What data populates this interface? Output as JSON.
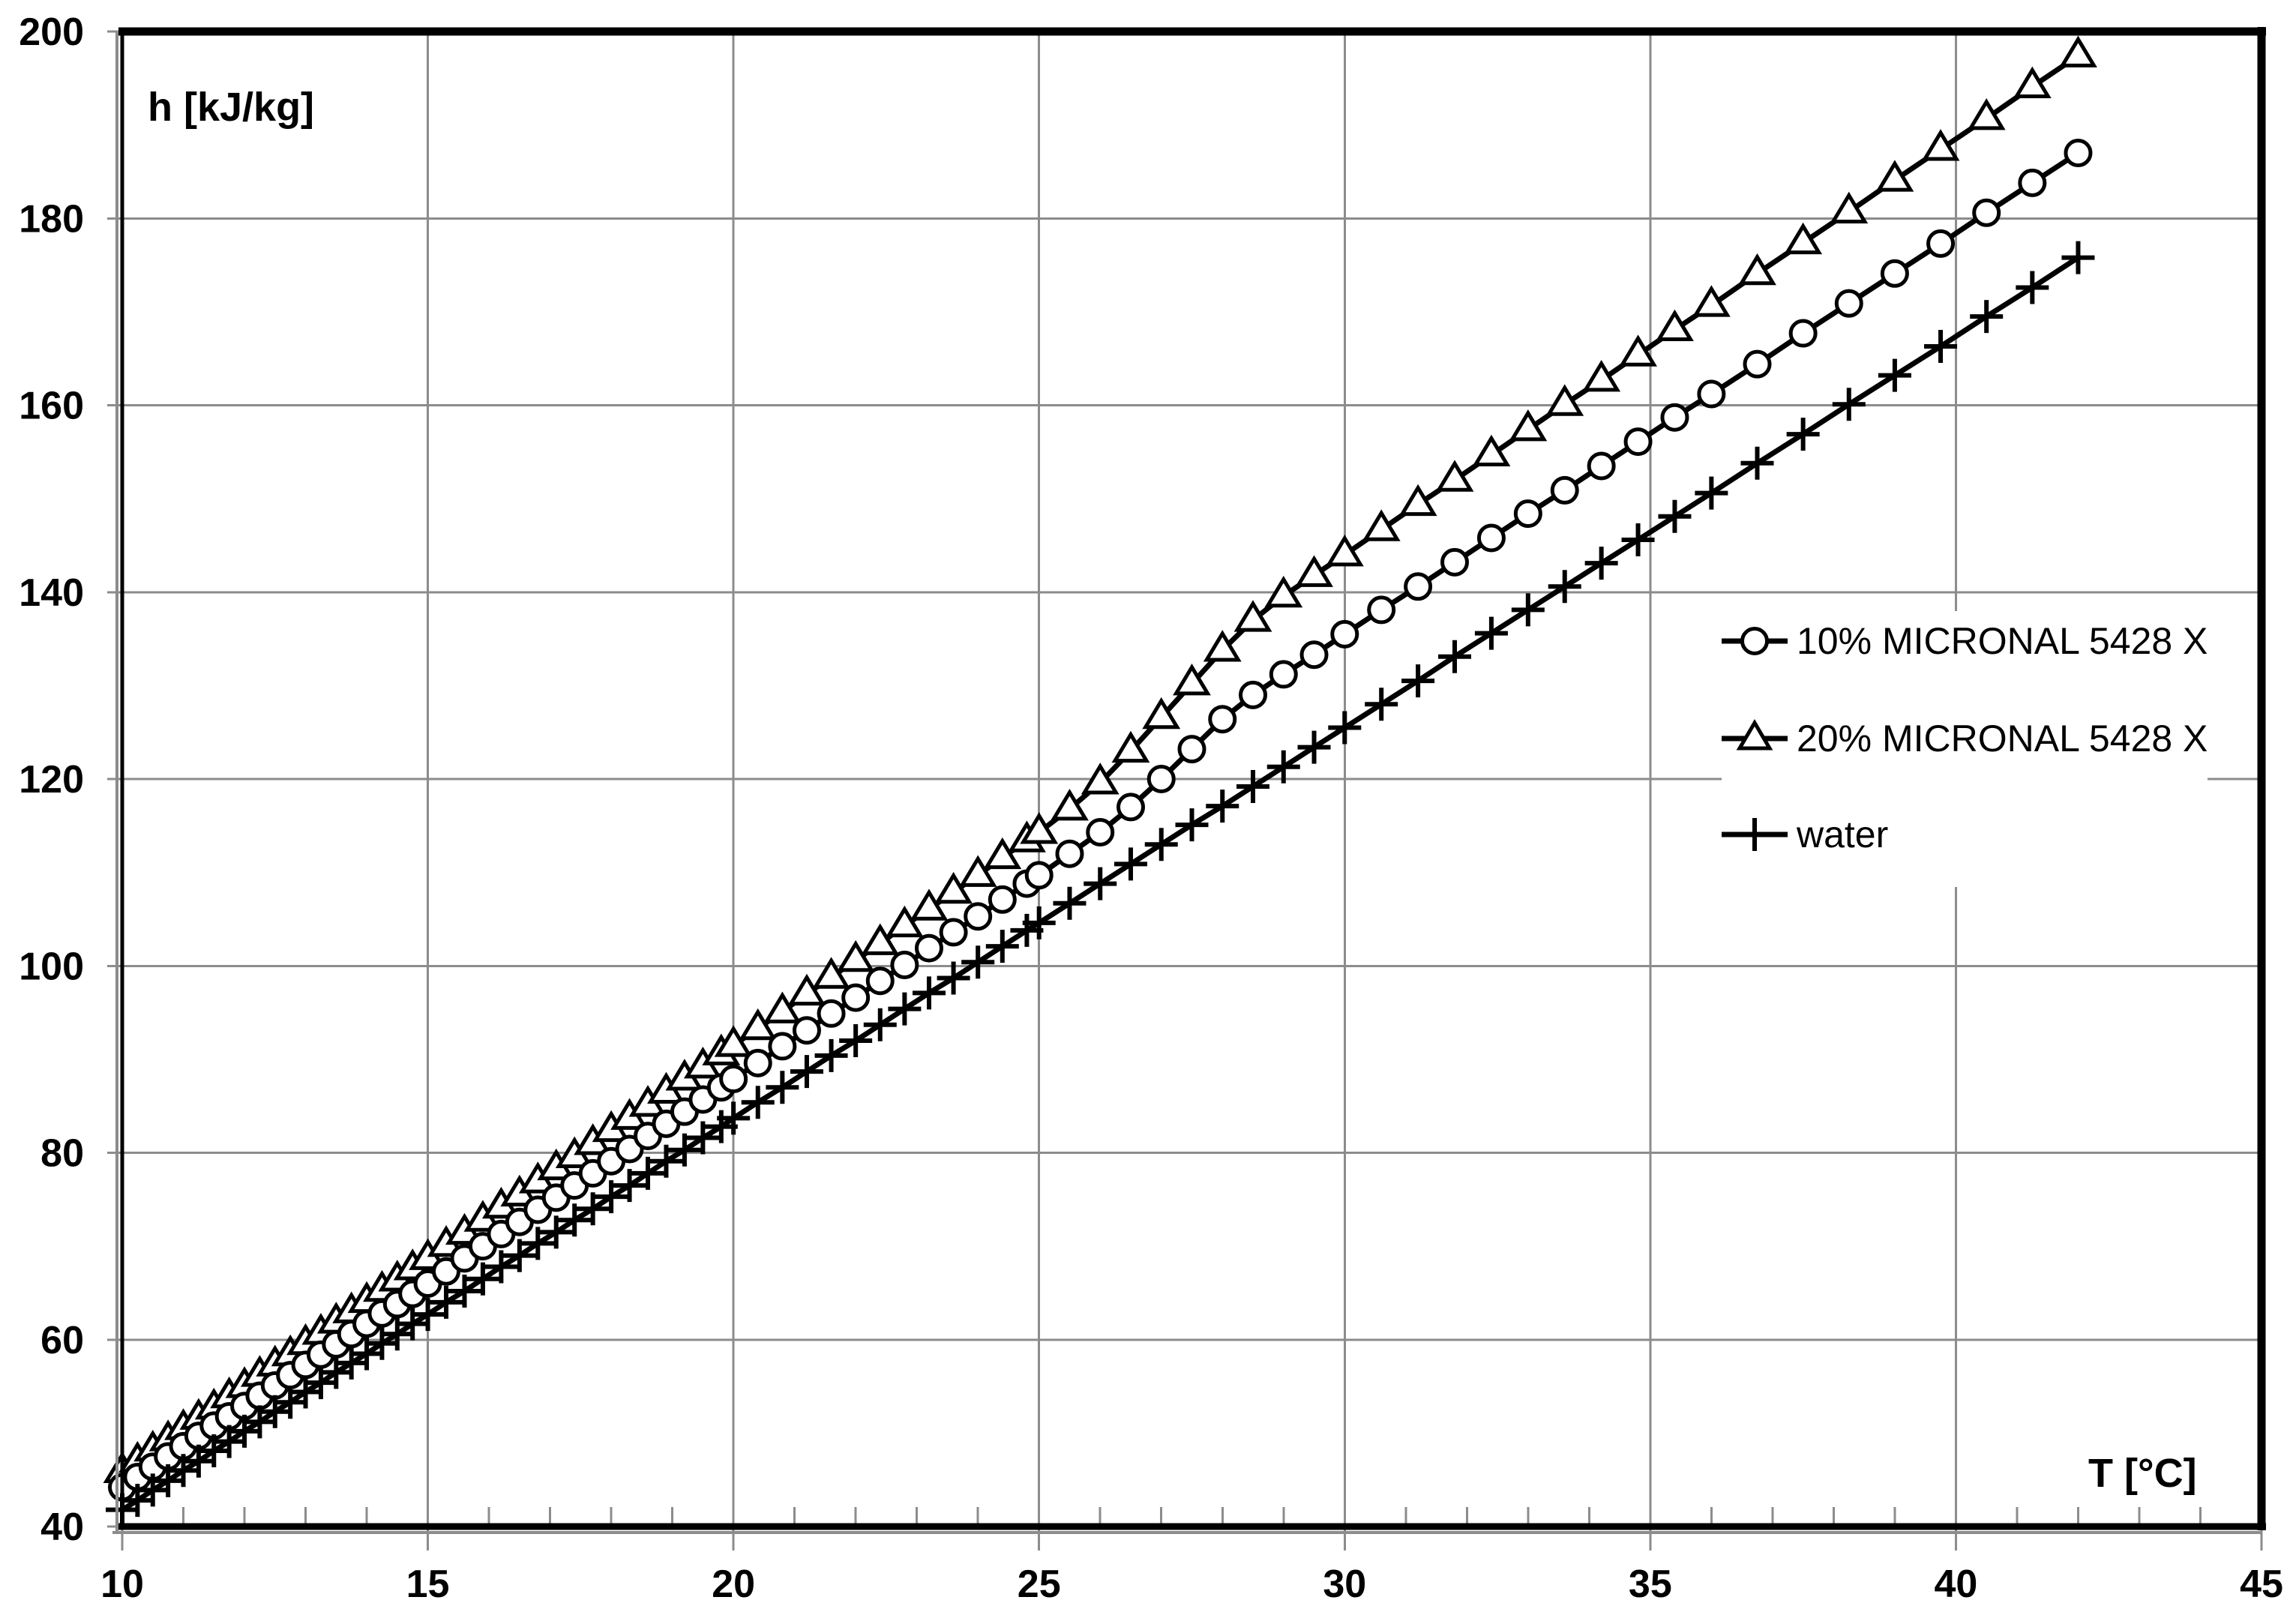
{
  "chart_data": {
    "type": "line",
    "title": "",
    "xlabel": "T [°C]",
    "ylabel": "h [kJ/kg]",
    "xlim": [
      10,
      45
    ],
    "ylim": [
      40,
      200
    ],
    "grid": true,
    "grid_color": "#8C8C8C",
    "line_color": "#000000",
    "background_color": "#FFFFFF",
    "legend_position": "middle-right",
    "x_major_ticks": [
      10,
      15,
      20,
      25,
      30,
      35,
      40,
      45
    ],
    "y_major_ticks": [
      40,
      60,
      80,
      100,
      120,
      140,
      160,
      180,
      200
    ],
    "x_gridlines": [
      15,
      20,
      25,
      30,
      35,
      40
    ],
    "y_gridlines": [
      60,
      80,
      100,
      120,
      140,
      160,
      180
    ],
    "x_minor_tick_step": 1,
    "series": [
      {
        "name": "10% MICRONAL 5428 X",
        "marker": "circle",
        "points": [
          [
            10,
            44.2
          ],
          [
            10.25,
            45.3
          ],
          [
            10.5,
            46.4
          ],
          [
            10.75,
            47.5
          ],
          [
            11,
            48.6
          ],
          [
            11.25,
            49.7
          ],
          [
            11.5,
            50.8
          ],
          [
            11.75,
            51.8
          ],
          [
            12,
            52.9
          ],
          [
            12.25,
            54
          ],
          [
            12.5,
            55.1
          ],
          [
            12.75,
            56.2
          ],
          [
            13,
            57.3
          ],
          [
            13.25,
            58.4
          ],
          [
            13.5,
            59.5
          ],
          [
            13.75,
            60.6
          ],
          [
            14,
            61.7
          ],
          [
            14.25,
            62.8
          ],
          [
            14.5,
            63.8
          ],
          [
            14.75,
            64.9
          ],
          [
            15,
            66
          ],
          [
            15.3,
            67.3
          ],
          [
            15.6,
            68.7
          ],
          [
            15.9,
            70
          ],
          [
            16.2,
            71.3
          ],
          [
            16.5,
            72.6
          ],
          [
            16.8,
            73.9
          ],
          [
            17.1,
            75.2
          ],
          [
            17.4,
            76.5
          ],
          [
            17.7,
            77.8
          ],
          [
            18,
            79.1
          ],
          [
            18.3,
            80.4
          ],
          [
            18.6,
            81.8
          ],
          [
            18.9,
            83.1
          ],
          [
            19.2,
            84.4
          ],
          [
            19.5,
            85.7
          ],
          [
            19.8,
            87
          ],
          [
            20,
            87.9
          ],
          [
            20.4,
            89.6
          ],
          [
            20.8,
            91.4
          ],
          [
            21.2,
            93.1
          ],
          [
            21.6,
            94.9
          ],
          [
            22,
            96.6
          ],
          [
            22.4,
            98.4
          ],
          [
            22.8,
            100.1
          ],
          [
            23.2,
            101.9
          ],
          [
            23.6,
            103.6
          ],
          [
            24,
            105.3
          ],
          [
            24.4,
            107.1
          ],
          [
            24.8,
            108.8
          ],
          [
            25,
            109.7
          ],
          [
            25.5,
            112
          ],
          [
            26,
            114.3
          ],
          [
            26.5,
            117
          ],
          [
            27,
            120
          ],
          [
            27.5,
            123.2
          ],
          [
            28,
            126.4
          ],
          [
            28.5,
            129
          ],
          [
            29,
            131.2
          ],
          [
            29.5,
            133.3
          ],
          [
            30,
            135.5
          ],
          [
            30.6,
            138.1
          ],
          [
            31.2,
            140.6
          ],
          [
            31.8,
            143.2
          ],
          [
            32.4,
            145.8
          ],
          [
            33,
            148.4
          ],
          [
            33.6,
            150.9
          ],
          [
            34.2,
            153.5
          ],
          [
            34.8,
            156.1
          ],
          [
            35.4,
            158.7
          ],
          [
            36,
            161.2
          ],
          [
            36.75,
            164.4
          ],
          [
            37.5,
            167.7
          ],
          [
            38.25,
            170.9
          ],
          [
            39,
            174.1
          ],
          [
            39.75,
            177.3
          ],
          [
            40.5,
            180.6
          ],
          [
            41.25,
            183.8
          ],
          [
            42,
            187
          ]
        ]
      },
      {
        "name": "20% MICRONAL 5428 X",
        "marker": "triangle",
        "points": [
          [
            10,
            45.9
          ],
          [
            10.25,
            47
          ],
          [
            10.5,
            48.2
          ],
          [
            10.75,
            49.3
          ],
          [
            11,
            50.5
          ],
          [
            11.25,
            51.6
          ],
          [
            11.5,
            52.7
          ],
          [
            11.75,
            53.9
          ],
          [
            12,
            55
          ],
          [
            12.25,
            56.2
          ],
          [
            12.5,
            57.3
          ],
          [
            12.75,
            58.4
          ],
          [
            13,
            59.6
          ],
          [
            13.25,
            60.7
          ],
          [
            13.5,
            61.9
          ],
          [
            13.75,
            63
          ],
          [
            14,
            64.1
          ],
          [
            14.25,
            65.3
          ],
          [
            14.5,
            66.4
          ],
          [
            14.75,
            67.6
          ],
          [
            15,
            68.7
          ],
          [
            15.3,
            70.1
          ],
          [
            15.6,
            71.4
          ],
          [
            15.9,
            72.8
          ],
          [
            16.2,
            74.2
          ],
          [
            16.5,
            75.5
          ],
          [
            16.8,
            76.9
          ],
          [
            17.1,
            78.3
          ],
          [
            17.4,
            79.6
          ],
          [
            17.7,
            81
          ],
          [
            18,
            82.4
          ],
          [
            18.3,
            83.7
          ],
          [
            18.6,
            85.1
          ],
          [
            18.9,
            86.5
          ],
          [
            19.2,
            87.9
          ],
          [
            19.5,
            89.2
          ],
          [
            19.8,
            90.6
          ],
          [
            20,
            91.5
          ],
          [
            20.4,
            93.3
          ],
          [
            20.8,
            95.1
          ],
          [
            21.2,
            97
          ],
          [
            21.6,
            98.8
          ],
          [
            22,
            100.6
          ],
          [
            22.4,
            102.4
          ],
          [
            22.8,
            104.3
          ],
          [
            23.2,
            106.1
          ],
          [
            23.6,
            107.9
          ],
          [
            24,
            109.7
          ],
          [
            24.4,
            111.6
          ],
          [
            24.8,
            113.4
          ],
          [
            25,
            114.3
          ],
          [
            25.5,
            116.8
          ],
          [
            26,
            119.6
          ],
          [
            26.5,
            123
          ],
          [
            27,
            126.6
          ],
          [
            27.5,
            130.2
          ],
          [
            28,
            133.8
          ],
          [
            28.5,
            137
          ],
          [
            29,
            139.6
          ],
          [
            29.5,
            141.8
          ],
          [
            30,
            144
          ],
          [
            30.6,
            146.7
          ],
          [
            31.2,
            149.4
          ],
          [
            31.8,
            152
          ],
          [
            32.4,
            154.7
          ],
          [
            33,
            157.4
          ],
          [
            33.6,
            160.1
          ],
          [
            34.2,
            162.7
          ],
          [
            34.8,
            165.4
          ],
          [
            35.4,
            168.1
          ],
          [
            36,
            170.7
          ],
          [
            36.75,
            174.1
          ],
          [
            37.5,
            177.4
          ],
          [
            38.25,
            180.7
          ],
          [
            39,
            184.1
          ],
          [
            39.75,
            187.4
          ],
          [
            40.5,
            190.7
          ],
          [
            41.25,
            194.1
          ],
          [
            42,
            197.4
          ]
        ]
      },
      {
        "name": "water",
        "marker": "plus",
        "points": [
          [
            10,
            41.8
          ],
          [
            10.25,
            42.8
          ],
          [
            10.5,
            43.9
          ],
          [
            10.75,
            44.9
          ],
          [
            11,
            46
          ],
          [
            11.25,
            47
          ],
          [
            11.5,
            48.1
          ],
          [
            11.75,
            49.1
          ],
          [
            12,
            50.2
          ],
          [
            12.25,
            51.2
          ],
          [
            12.5,
            52.3
          ],
          [
            12.75,
            53.3
          ],
          [
            13,
            54.4
          ],
          [
            13.25,
            55.4
          ],
          [
            13.5,
            56.5
          ],
          [
            13.75,
            57.5
          ],
          [
            14,
            58.5
          ],
          [
            14.25,
            59.6
          ],
          [
            14.5,
            60.6
          ],
          [
            14.75,
            61.7
          ],
          [
            15,
            62.7
          ],
          [
            15.3,
            64
          ],
          [
            15.6,
            65.2
          ],
          [
            15.9,
            66.5
          ],
          [
            16.2,
            67.8
          ],
          [
            16.5,
            69
          ],
          [
            16.8,
            70.3
          ],
          [
            17.1,
            71.5
          ],
          [
            17.4,
            72.8
          ],
          [
            17.7,
            74
          ],
          [
            18,
            75.3
          ],
          [
            18.3,
            76.5
          ],
          [
            18.6,
            77.8
          ],
          [
            18.9,
            79.1
          ],
          [
            19.2,
            80.3
          ],
          [
            19.5,
            81.6
          ],
          [
            19.8,
            82.8
          ],
          [
            20,
            83.7
          ],
          [
            20.4,
            85.4
          ],
          [
            20.8,
            87
          ],
          [
            21.2,
            88.7
          ],
          [
            21.6,
            90.4
          ],
          [
            22,
            92
          ],
          [
            22.4,
            93.7
          ],
          [
            22.8,
            95.4
          ],
          [
            23.2,
            97.1
          ],
          [
            23.6,
            98.7
          ],
          [
            24,
            100.4
          ],
          [
            24.4,
            102.1
          ],
          [
            24.8,
            103.8
          ],
          [
            25,
            104.6
          ],
          [
            25.5,
            106.7
          ],
          [
            26,
            108.8
          ],
          [
            26.5,
            110.9
          ],
          [
            27,
            113
          ],
          [
            27.5,
            115.1
          ],
          [
            28,
            117.1
          ],
          [
            28.5,
            119.2
          ],
          [
            29,
            121.3
          ],
          [
            29.5,
            123.4
          ],
          [
            30,
            125.5
          ],
          [
            30.6,
            128
          ],
          [
            31.2,
            130.5
          ],
          [
            31.8,
            133.1
          ],
          [
            32.4,
            135.6
          ],
          [
            33,
            138.1
          ],
          [
            33.6,
            140.6
          ],
          [
            34.2,
            143.1
          ],
          [
            34.8,
            145.6
          ],
          [
            35.4,
            148.1
          ],
          [
            36,
            150.6
          ],
          [
            36.75,
            153.8
          ],
          [
            37.5,
            156.9
          ],
          [
            38.25,
            160.1
          ],
          [
            39,
            163.2
          ],
          [
            39.75,
            166.3
          ],
          [
            40.5,
            169.5
          ],
          [
            41.25,
            172.6
          ],
          [
            42,
            175.8
          ]
        ]
      }
    ]
  }
}
